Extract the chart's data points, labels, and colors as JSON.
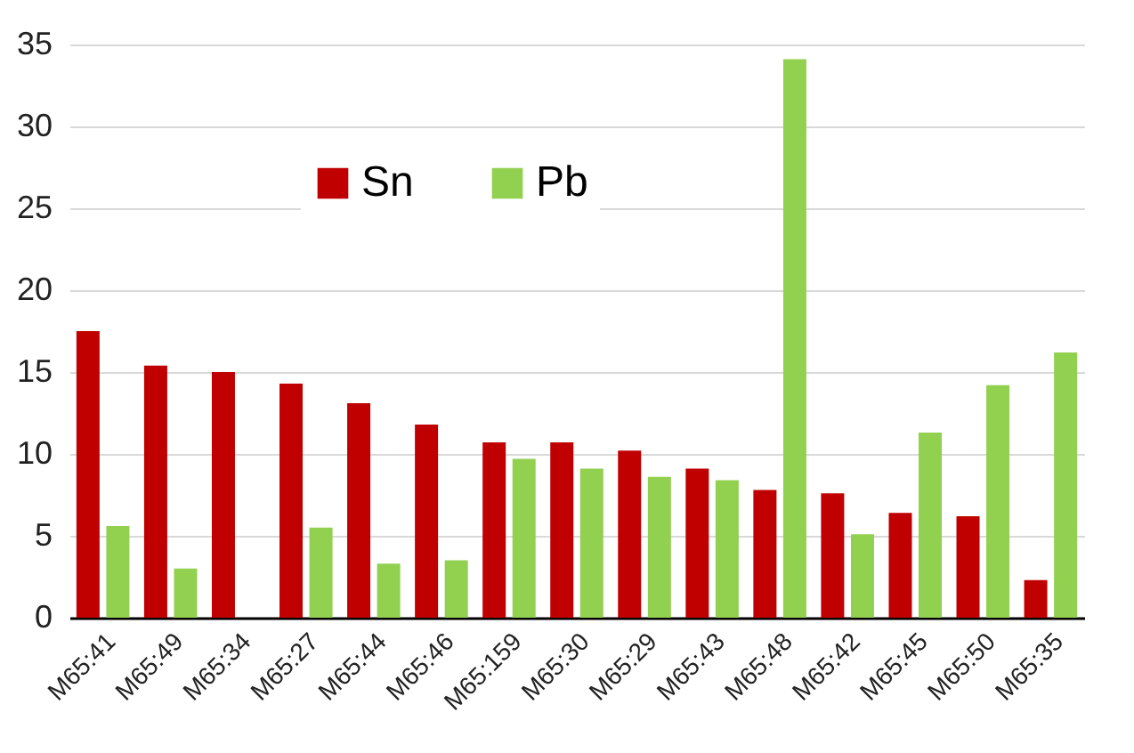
{
  "chart_data": {
    "type": "bar",
    "categories": [
      "M65:41",
      "M65:49",
      "M65:34",
      "M65:27",
      "M65:44",
      "M65:46",
      "M65:159",
      "M65:30",
      "M65:29",
      "M65:43",
      "M65:48",
      "M65:42",
      "M65:45",
      "M65:50",
      "M65:35"
    ],
    "series": [
      {
        "name": "Sn",
        "color": "#c00000",
        "values": [
          17.5,
          15.4,
          15.0,
          14.3,
          13.1,
          11.8,
          10.7,
          10.7,
          10.2,
          9.1,
          7.8,
          7.6,
          6.4,
          6.2,
          2.3
        ]
      },
      {
        "name": "Pb",
        "color": "#92d050",
        "values": [
          5.6,
          3.0,
          null,
          5.5,
          3.3,
          3.5,
          9.7,
          9.1,
          8.6,
          8.4,
          34.1,
          5.1,
          11.3,
          14.2,
          16.2
        ]
      }
    ],
    "ylim": [
      0,
      35
    ],
    "yticks": [
      0,
      5,
      10,
      15,
      20,
      25,
      30,
      35
    ],
    "grid": "y",
    "legend": "top left"
  }
}
